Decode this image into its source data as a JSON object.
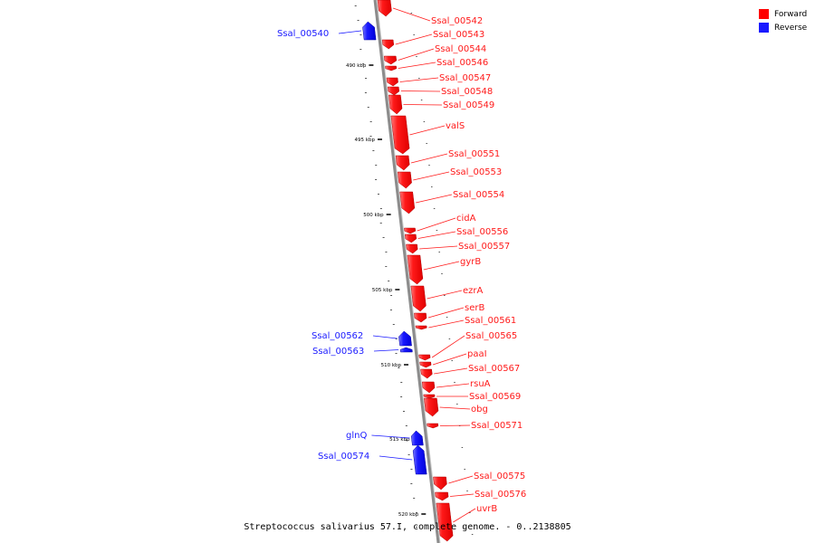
{
  "colors": {
    "forward": "#ff1a1a",
    "reverse": "#1a1aff",
    "backbone": "#8c8c8c"
  },
  "legend": [
    {
      "label": "Forward",
      "color": "#ff0000"
    },
    {
      "label": "Reverse",
      "color": "#1a1aff"
    }
  ],
  "caption": "Streptococcus salivarius 57.I, complete genome. - 0..2138805",
  "ticks": [
    {
      "label": "490 kbp"
    },
    {
      "label": "495 kbp"
    },
    {
      "label": "500 kbp"
    },
    {
      "label": "505 kbp"
    },
    {
      "label": "510 kbp"
    },
    {
      "label": "515 kbp"
    },
    {
      "label": "520 kbp"
    }
  ],
  "genes": [
    {
      "label": "Ssal_00542",
      "strand": "forward"
    },
    {
      "label": "Ssal_00543",
      "strand": "forward"
    },
    {
      "label": "Ssal_00544",
      "strand": "forward"
    },
    {
      "label": "Ssal_00546",
      "strand": "forward"
    },
    {
      "label": "Ssal_00547",
      "strand": "forward"
    },
    {
      "label": "Ssal_00548",
      "strand": "forward"
    },
    {
      "label": "Ssal_00549",
      "strand": "forward"
    },
    {
      "label": "valS",
      "strand": "forward"
    },
    {
      "label": "Ssal_00551",
      "strand": "forward"
    },
    {
      "label": "Ssal_00553",
      "strand": "forward"
    },
    {
      "label": "Ssal_00554",
      "strand": "forward"
    },
    {
      "label": "cidA",
      "strand": "forward"
    },
    {
      "label": "Ssal_00556",
      "strand": "forward"
    },
    {
      "label": "Ssal_00557",
      "strand": "forward"
    },
    {
      "label": "gyrB",
      "strand": "forward"
    },
    {
      "label": "ezrA",
      "strand": "forward"
    },
    {
      "label": "serB",
      "strand": "forward"
    },
    {
      "label": "Ssal_00561",
      "strand": "forward"
    },
    {
      "label": "Ssal_00565",
      "strand": "forward"
    },
    {
      "label": "paaI",
      "strand": "forward"
    },
    {
      "label": "Ssal_00567",
      "strand": "forward"
    },
    {
      "label": "rsuA",
      "strand": "forward"
    },
    {
      "label": "Ssal_00569",
      "strand": "forward"
    },
    {
      "label": "obg",
      "strand": "forward"
    },
    {
      "label": "Ssal_00571",
      "strand": "forward"
    },
    {
      "label": "Ssal_00575",
      "strand": "forward"
    },
    {
      "label": "Ssal_00576",
      "strand": "forward"
    },
    {
      "label": "uvrB",
      "strand": "forward"
    },
    {
      "label": "Ssal_00540",
      "strand": "reverse"
    },
    {
      "label": "Ssal_00562",
      "strand": "reverse"
    },
    {
      "label": "Ssal_00563",
      "strand": "reverse"
    },
    {
      "label": "glnQ",
      "strand": "reverse"
    },
    {
      "label": "Ssal_00574",
      "strand": "reverse"
    }
  ]
}
